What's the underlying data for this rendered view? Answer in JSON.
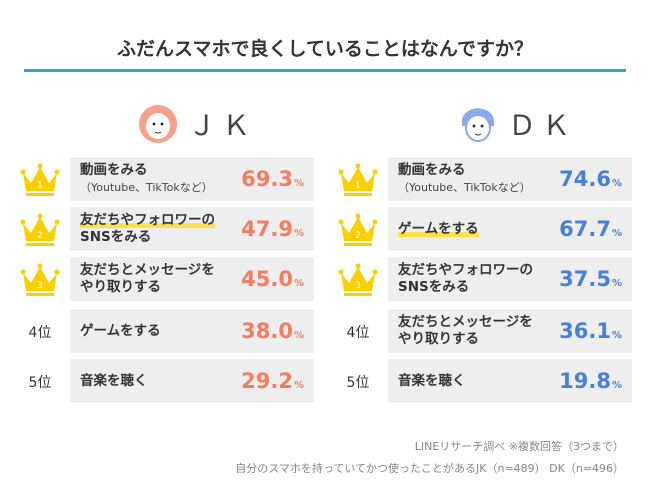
{
  "title": "ふだんスマホで良くしていることはなんですか？",
  "chart_data": {
    "type": "table",
    "title": "ふだんスマホで良くしていることはなんですか？",
    "groups": [
      {
        "name": "ＪＫ",
        "color": "#f47c62",
        "rows": [
          {
            "rank": "1",
            "label": "動画をみる",
            "sub": "（Youtube、TikTokなど）",
            "value": "69.3",
            "unit": "%"
          },
          {
            "rank": "2",
            "label": "友だちやフォロワーの",
            "label2": "SNSをみる",
            "value": "47.9",
            "unit": "%"
          },
          {
            "rank": "3",
            "label": "友だちとメッセージを",
            "label2": "やり取りする",
            "value": "45.0",
            "unit": "%"
          },
          {
            "rank": "4位",
            "label": "ゲームをする",
            "value": "38.0",
            "unit": "%"
          },
          {
            "rank": "5位",
            "label": "音楽を聴く",
            "value": "29.2",
            "unit": "%"
          }
        ]
      },
      {
        "name": "ＤＫ",
        "color": "#4a7fd6",
        "rows": [
          {
            "rank": "1",
            "label": "動画をみる",
            "sub": "（Youtube、TikTokなど）",
            "value": "74.6",
            "unit": "%"
          },
          {
            "rank": "2",
            "label": "ゲームをする",
            "value": "67.7",
            "unit": "%"
          },
          {
            "rank": "3",
            "label": "友だちやフォロワーの",
            "label2": "SNSをみる",
            "value": "37.5",
            "unit": "%"
          },
          {
            "rank": "4位",
            "label": "友だちとメッセージを",
            "label2": "やり取りする",
            "value": "36.1",
            "unit": "%"
          },
          {
            "rank": "5位",
            "label": "音楽を聴く",
            "value": "19.8",
            "unit": "%"
          }
        ]
      }
    ]
  },
  "footer": {
    "line1": "LINEリサーチ調べ ※複数回答（3つまで）",
    "line2": "自分のスマホを持っていてかつ使ったことがあるJK（n=489） DK（n=496）"
  }
}
